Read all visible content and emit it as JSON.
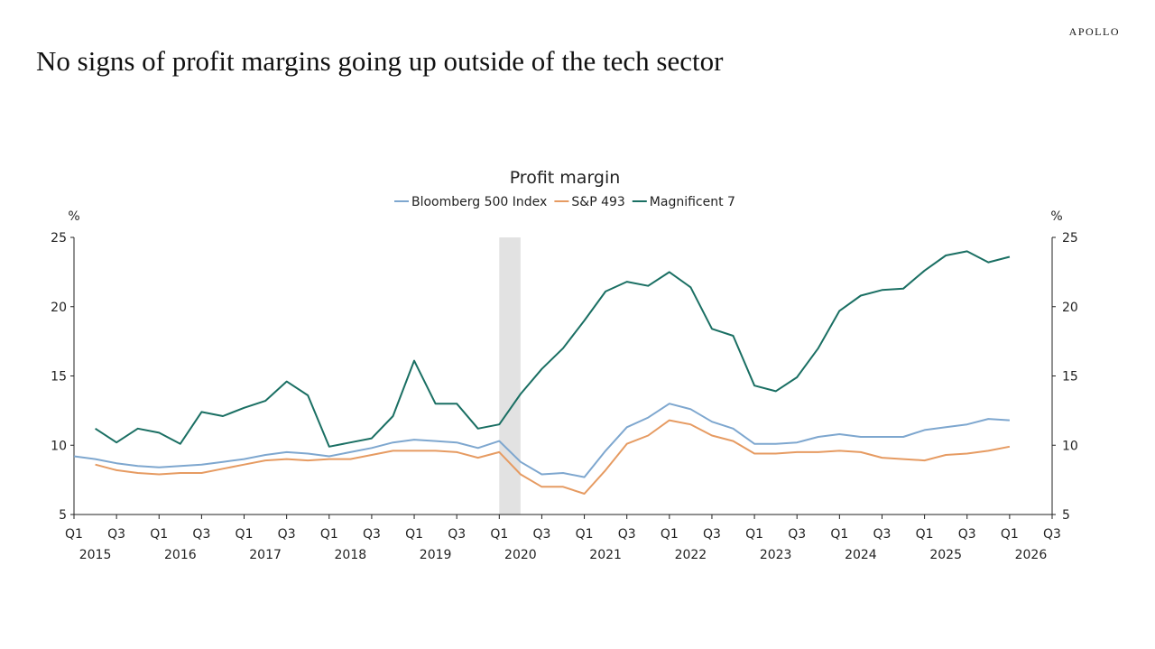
{
  "header": {
    "brand": "APOLLO",
    "headline": "No signs of profit margins going up outside of the tech sector"
  },
  "chart_data": {
    "type": "line",
    "title": "Profit margin",
    "left_unit": "%",
    "right_unit": "%",
    "ylim": [
      5,
      25
    ],
    "yticks": [
      "5",
      "10",
      "15",
      "20",
      "25"
    ],
    "legend_position": "top-center",
    "grid": false,
    "x_ticks": [
      "Q1",
      "Q3",
      "Q1",
      "Q3",
      "Q1",
      "Q3",
      "Q1",
      "Q3",
      "Q1",
      "Q3",
      "Q1",
      "Q3",
      "Q1",
      "Q3",
      "Q1",
      "Q3",
      "Q1",
      "Q3",
      "Q1",
      "Q3",
      "Q1",
      "Q3",
      "Q1",
      "Q3"
    ],
    "years": [
      "2015",
      "2016",
      "2017",
      "2018",
      "2019",
      "2020",
      "2021",
      "2022",
      "2023",
      "2024",
      "2025",
      "2026"
    ],
    "x_start": "2015 Q1",
    "x_end": "2026 Q3",
    "shaded_period": {
      "from": "2020 Q1",
      "to": "2020 Q2"
    },
    "series": [
      {
        "name": "Bloomberg 500 Index",
        "color": "#7ea7cf",
        "x": [
          "2015 Q1",
          "2015 Q2",
          "2015 Q3",
          "2015 Q4",
          "2016 Q1",
          "2016 Q2",
          "2016 Q3",
          "2016 Q4",
          "2017 Q1",
          "2017 Q2",
          "2017 Q3",
          "2017 Q4",
          "2018 Q1",
          "2018 Q2",
          "2018 Q3",
          "2018 Q4",
          "2019 Q1",
          "2019 Q2",
          "2019 Q3",
          "2019 Q4",
          "2020 Q1",
          "2020 Q2",
          "2020 Q3",
          "2020 Q4",
          "2021 Q1",
          "2021 Q2",
          "2021 Q3",
          "2021 Q4",
          "2022 Q1",
          "2022 Q2",
          "2022 Q3",
          "2022 Q4",
          "2023 Q1",
          "2023 Q2",
          "2023 Q3",
          "2023 Q4",
          "2024 Q1",
          "2024 Q2",
          "2024 Q3",
          "2024 Q4",
          "2025 Q1",
          "2025 Q2",
          "2025 Q3",
          "2025 Q4",
          "2026 Q1"
        ],
        "values": [
          9.2,
          9.0,
          8.7,
          8.5,
          8.4,
          8.5,
          8.6,
          8.8,
          9.0,
          9.3,
          9.5,
          9.4,
          9.2,
          9.5,
          9.8,
          10.2,
          10.4,
          10.3,
          10.2,
          9.8,
          10.3,
          8.8,
          7.9,
          8.0,
          7.7,
          9.6,
          11.3,
          12.0,
          13.0,
          12.6,
          11.7,
          11.2,
          10.1,
          10.1,
          10.2,
          10.6,
          10.8,
          10.6,
          10.6,
          10.6,
          11.1,
          11.3,
          11.5,
          11.9,
          11.8
        ]
      },
      {
        "name": "S&P 493",
        "color": "#e69b62",
        "x": [
          "2015 Q2",
          "2015 Q3",
          "2015 Q4",
          "2016 Q1",
          "2016 Q2",
          "2016 Q3",
          "2016 Q4",
          "2017 Q1",
          "2017 Q2",
          "2017 Q3",
          "2017 Q4",
          "2018 Q1",
          "2018 Q2",
          "2018 Q3",
          "2018 Q4",
          "2019 Q1",
          "2019 Q2",
          "2019 Q3",
          "2019 Q4",
          "2020 Q1",
          "2020 Q2",
          "2020 Q3",
          "2020 Q4",
          "2021 Q1",
          "2021 Q2",
          "2021 Q3",
          "2021 Q4",
          "2022 Q1",
          "2022 Q2",
          "2022 Q3",
          "2022 Q4",
          "2023 Q1",
          "2023 Q2",
          "2023 Q3",
          "2023 Q4",
          "2024 Q1",
          "2024 Q2",
          "2024 Q3",
          "2024 Q4",
          "2025 Q1",
          "2025 Q2",
          "2025 Q3",
          "2025 Q4",
          "2026 Q1"
        ],
        "values": [
          8.6,
          8.2,
          8.0,
          7.9,
          8.0,
          8.0,
          8.3,
          8.6,
          8.9,
          9.0,
          8.9,
          9.0,
          9.0,
          9.3,
          9.6,
          9.6,
          9.6,
          9.5,
          9.1,
          9.5,
          7.9,
          7.0,
          7.0,
          6.5,
          8.2,
          10.1,
          10.7,
          11.8,
          11.5,
          10.7,
          10.3,
          9.4,
          9.4,
          9.5,
          9.5,
          9.6,
          9.5,
          9.1,
          9.0,
          8.9,
          9.3,
          9.4,
          9.6,
          9.9
        ]
      },
      {
        "name": "Magnificent 7",
        "color": "#1a6f63",
        "x": [
          "2015 Q2",
          "2015 Q3",
          "2015 Q4",
          "2016 Q1",
          "2016 Q2",
          "2016 Q3",
          "2016 Q4",
          "2017 Q1",
          "2017 Q2",
          "2017 Q3",
          "2017 Q4",
          "2018 Q1",
          "2018 Q2",
          "2018 Q3",
          "2018 Q4",
          "2019 Q1",
          "2019 Q2",
          "2019 Q3",
          "2019 Q4",
          "2020 Q1",
          "2020 Q2",
          "2020 Q3",
          "2020 Q4",
          "2021 Q1",
          "2021 Q2",
          "2021 Q3",
          "2021 Q4",
          "2022 Q1",
          "2022 Q2",
          "2022 Q3",
          "2022 Q4",
          "2023 Q1",
          "2023 Q2",
          "2023 Q3",
          "2023 Q4",
          "2024 Q1",
          "2024 Q2",
          "2024 Q3",
          "2024 Q4",
          "2025 Q1",
          "2025 Q2",
          "2025 Q3",
          "2025 Q4",
          "2026 Q1"
        ],
        "values": [
          11.2,
          10.2,
          11.2,
          10.9,
          10.1,
          12.4,
          12.1,
          12.7,
          13.2,
          14.6,
          13.6,
          9.9,
          10.2,
          10.5,
          12.1,
          16.1,
          13.0,
          13.0,
          11.2,
          11.5,
          13.7,
          15.5,
          17.0,
          19.0,
          21.1,
          21.8,
          21.5,
          22.5,
          21.4,
          18.4,
          17.9,
          14.3,
          13.9,
          14.9,
          17.0,
          19.7,
          20.8,
          21.2,
          21.3,
          22.6,
          23.7,
          24.0,
          23.2,
          23.6
        ]
      }
    ]
  }
}
